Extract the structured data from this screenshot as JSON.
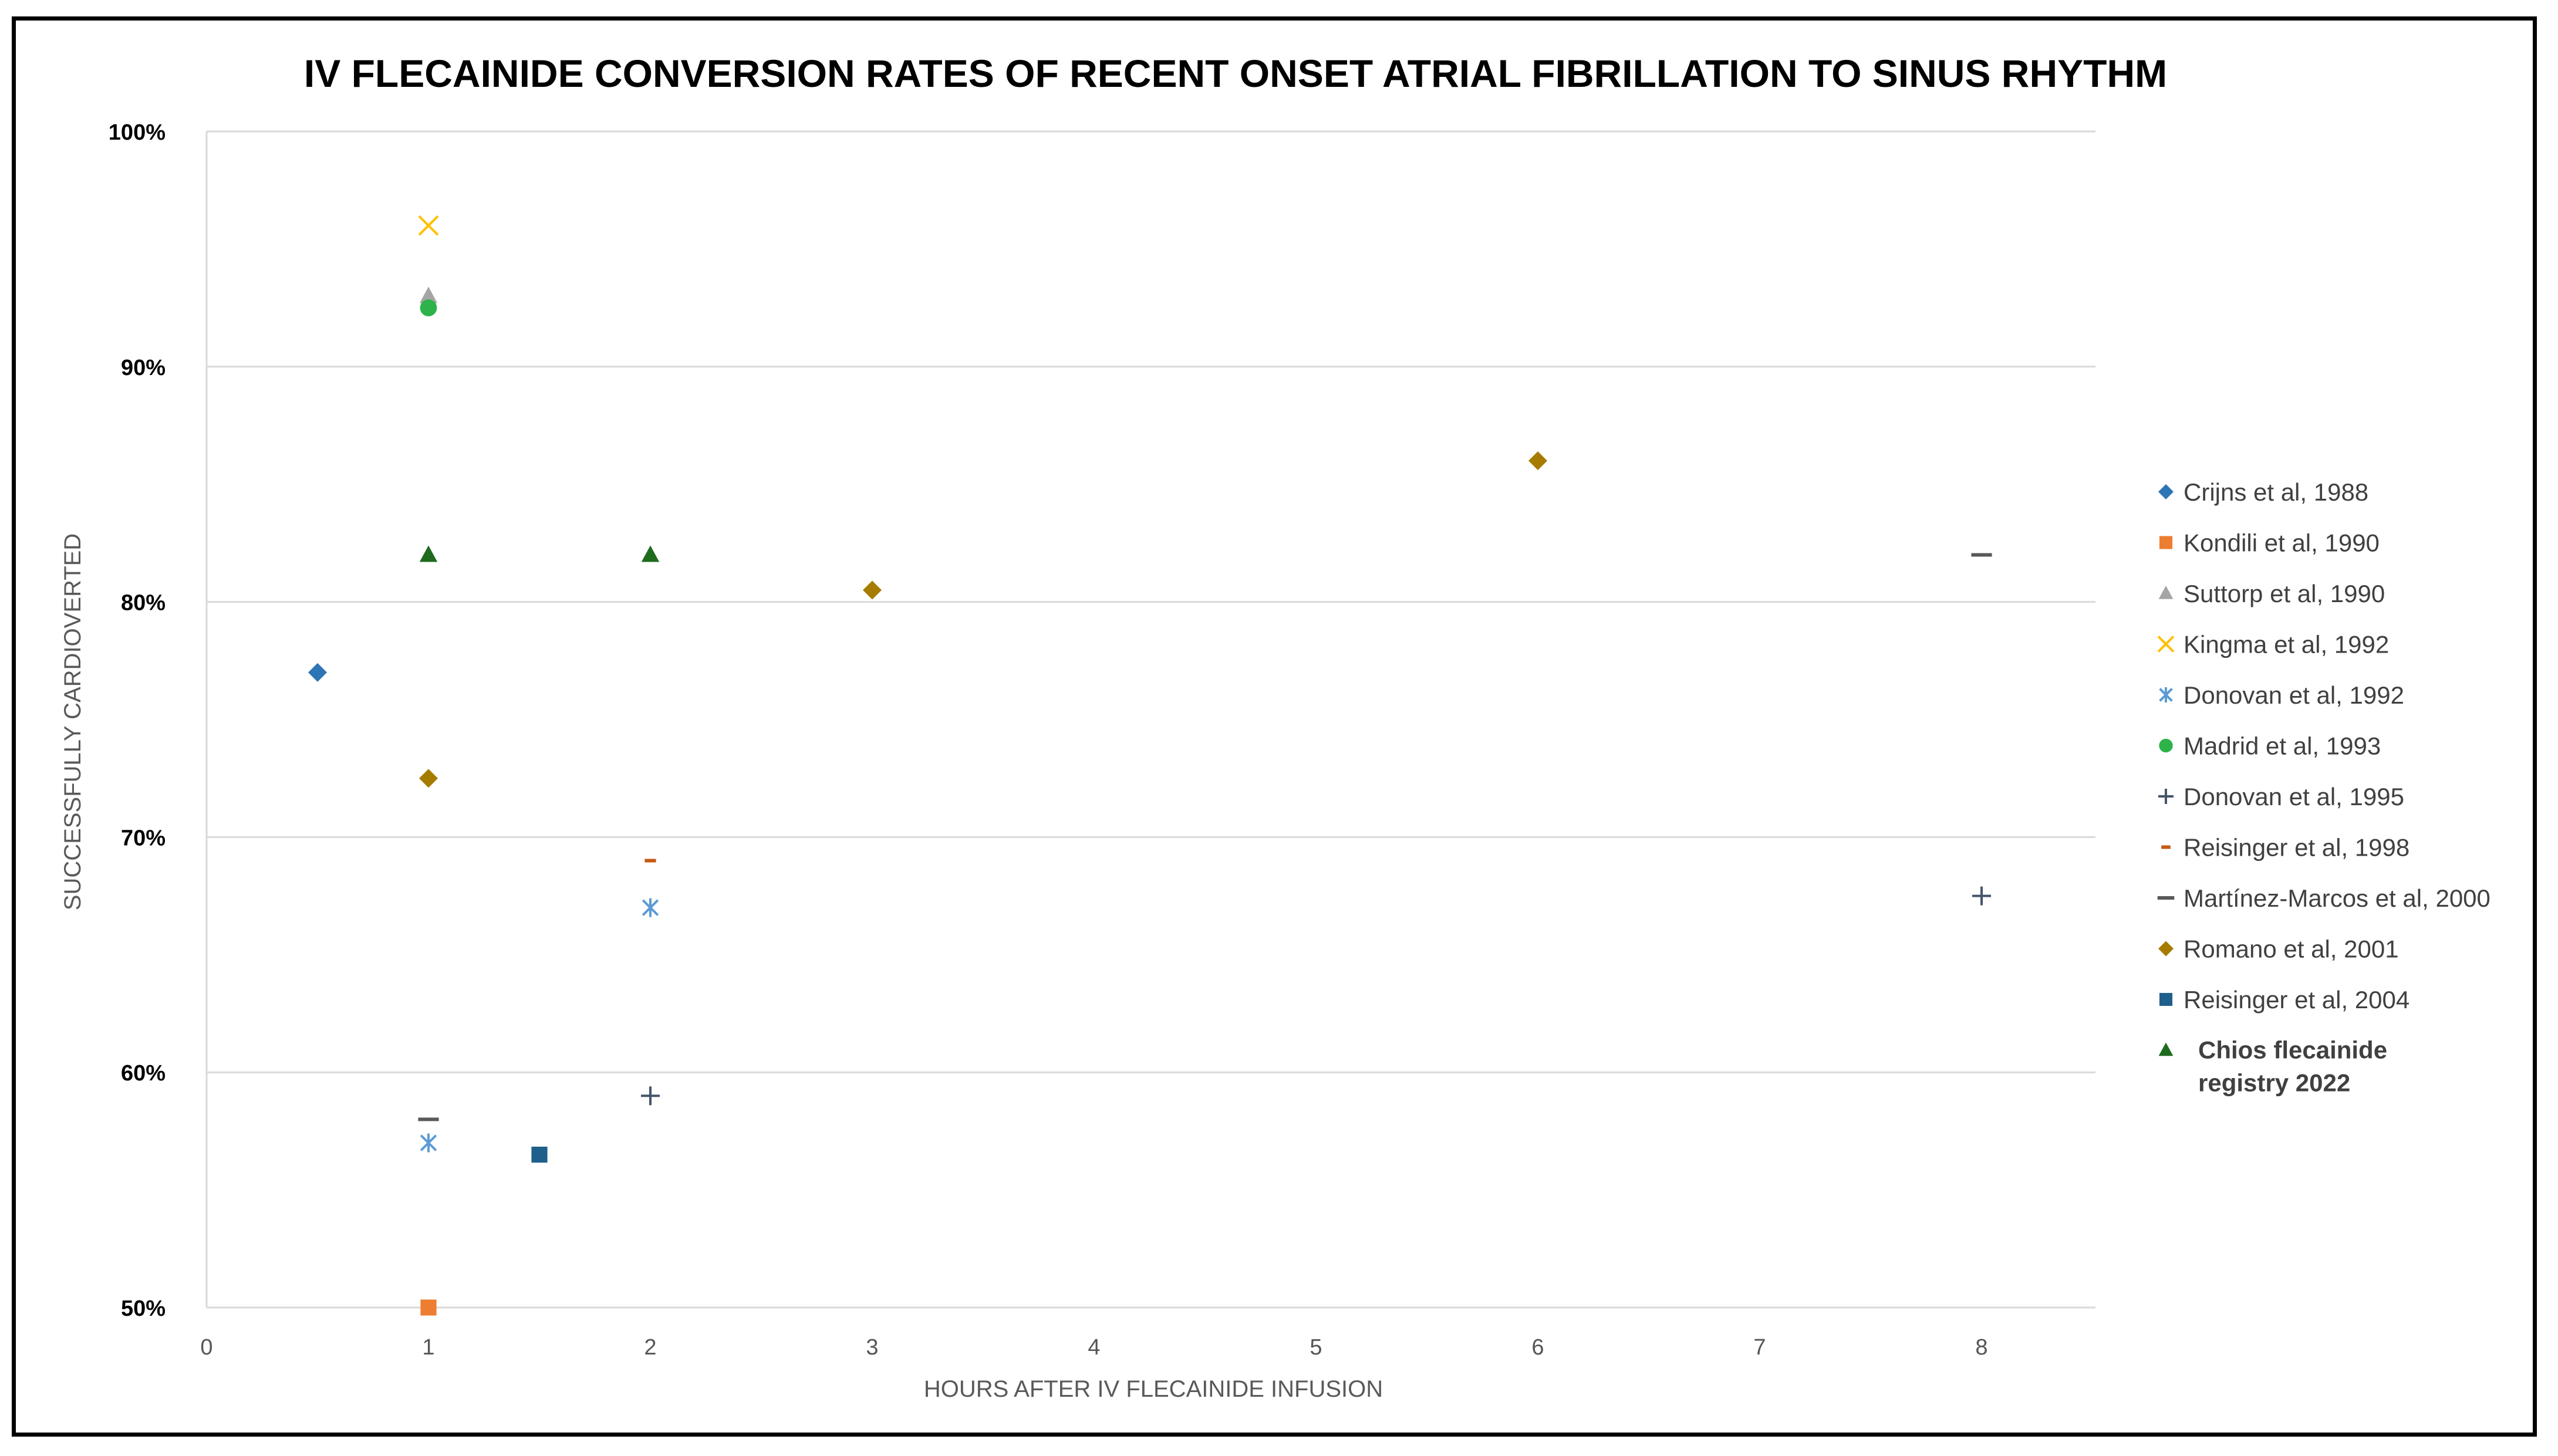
{
  "chart_data": {
    "type": "scatter",
    "title": "IV FLECAINIDE CONVERSION RATES OF RECENT ONSET ATRIAL FIBRILLATION TO SINUS RHYTHM",
    "xlabel": "HOURS AFTER IV FLECAINIDE INFUSION",
    "ylabel": "SUCCESSFULLY CARDIOVERTED",
    "x_ticks": [
      {
        "value": 0,
        "label": "0"
      },
      {
        "value": 1,
        "label": "1"
      },
      {
        "value": 2,
        "label": "2"
      },
      {
        "value": 3,
        "label": "3"
      },
      {
        "value": 4,
        "label": "4"
      },
      {
        "value": 5,
        "label": "5"
      },
      {
        "value": 6,
        "label": "6"
      },
      {
        "value": 7,
        "label": "7"
      },
      {
        "value": 8,
        "label": "8"
      }
    ],
    "y_ticks": [
      {
        "value": 50,
        "label": "50%"
      },
      {
        "value": 60,
        "label": "60%"
      },
      {
        "value": 70,
        "label": "70%"
      },
      {
        "value": 80,
        "label": "80%"
      },
      {
        "value": 90,
        "label": "90%"
      },
      {
        "value": 100,
        "label": "100%"
      }
    ],
    "xlim": [
      0,
      8.5
    ],
    "ylim": [
      50,
      100
    ],
    "grid": "horizontal",
    "legend_position": "right",
    "series": [
      {
        "name": "Crijns et al, 1988",
        "marker": "diamond",
        "color": "#2e75b6",
        "points": [
          {
            "x": 0.5,
            "y": 77
          }
        ]
      },
      {
        "name": "Kondili et al, 1990",
        "marker": "square",
        "color": "#ed7d31",
        "points": [
          {
            "x": 1,
            "y": 50
          }
        ]
      },
      {
        "name": "Suttorp et al, 1990",
        "marker": "triangle",
        "color": "#a5a5a5",
        "points": [
          {
            "x": 1,
            "y": 93
          }
        ]
      },
      {
        "name": "Kingma et al, 1992",
        "marker": "x",
        "color": "#ffc000",
        "points": [
          {
            "x": 1,
            "y": 96
          }
        ]
      },
      {
        "name": "Donovan et al, 1992",
        "marker": "asterisk",
        "color": "#5b9bd5",
        "points": [
          {
            "x": 1,
            "y": 57
          },
          {
            "x": 2,
            "y": 67
          }
        ]
      },
      {
        "name": "Madrid et al, 1993",
        "marker": "circle",
        "color": "#2db34a",
        "points": [
          {
            "x": 1,
            "y": 92.5
          }
        ]
      },
      {
        "name": "Donovan et al, 1995",
        "marker": "plus",
        "color": "#44546a",
        "points": [
          {
            "x": 2,
            "y": 59
          },
          {
            "x": 8,
            "y": 67.5
          }
        ]
      },
      {
        "name": "Reisinger et al, 1998",
        "marker": "short-dash",
        "color": "#c55a11",
        "points": [
          {
            "x": 2,
            "y": 69
          }
        ]
      },
      {
        "name": "Martínez-Marcos et al, 2000",
        "marker": "dash",
        "color": "#595959",
        "points": [
          {
            "x": 1,
            "y": 58
          },
          {
            "x": 8,
            "y": 82
          }
        ]
      },
      {
        "name": "Romano et al, 2001",
        "marker": "diamond",
        "color": "#a67c00",
        "points": [
          {
            "x": 1,
            "y": 72.5
          },
          {
            "x": 3,
            "y": 80.5
          },
          {
            "x": 6,
            "y": 86
          }
        ]
      },
      {
        "name": "Reisinger et al, 2004",
        "marker": "square",
        "color": "#1f5f8b",
        "points": [
          {
            "x": 1.5,
            "y": 56.5
          }
        ]
      },
      {
        "name": "Chios flecainide registry 2022",
        "marker": "triangle",
        "color": "#1e6b1e",
        "bold": true,
        "label_lines": [
          "Chios flecainide",
          "registry 2022"
        ],
        "points": [
          {
            "x": 1,
            "y": 82
          },
          {
            "x": 2,
            "y": 82
          }
        ]
      }
    ]
  }
}
